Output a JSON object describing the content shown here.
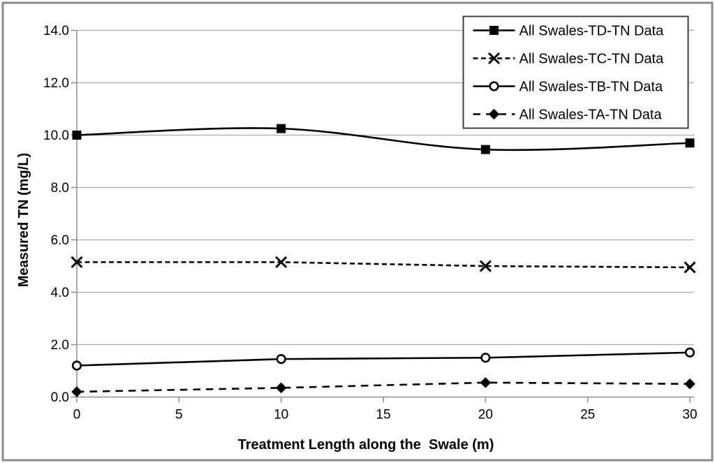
{
  "figure": {
    "background": "#ffffff",
    "border_color": "#8c8c8c"
  },
  "chart_data": {
    "type": "line",
    "xlabel": "Treatment Length along the  Swale (m)",
    "ylabel": "Measured TN (mg/L)",
    "xlim": [
      0,
      30
    ],
    "ylim": [
      0,
      14
    ],
    "xticks": [
      0,
      5,
      10,
      15,
      20,
      25,
      30
    ],
    "yticks": [
      "0.0",
      "2.0",
      "4.0",
      "6.0",
      "8.0",
      "10.0",
      "12.0",
      "14.0"
    ],
    "grid": "horizontal-gridlines-on",
    "legend_position": "top-right",
    "x": [
      0,
      10,
      20,
      30
    ],
    "series": [
      {
        "key": "TD",
        "name": "All Swales-TD-TN Data",
        "values": [
          10.0,
          10.25,
          9.45,
          9.7
        ],
        "line": "solid",
        "marker": "filled-square",
        "smooth": true
      },
      {
        "key": "TC",
        "name": "All Swales-TC-TN Data",
        "values": [
          5.15,
          5.15,
          5.0,
          4.95
        ],
        "line": "dashed",
        "marker": "x-cross",
        "smooth": false
      },
      {
        "key": "TB",
        "name": "All Swales-TB-TN Data",
        "values": [
          1.2,
          1.45,
          1.5,
          1.7
        ],
        "line": "solid",
        "marker": "open-circle",
        "smooth": false
      },
      {
        "key": "TA",
        "name": "All Swales-TA-TN Data",
        "values": [
          0.2,
          0.35,
          0.55,
          0.5
        ],
        "line": "dashed",
        "marker": "filled-diamond",
        "smooth": false
      }
    ],
    "colors": {
      "series": "#000000",
      "gridline": "#a8a8a8",
      "axis": "#8c8c8c",
      "tick_label": "#000000",
      "plot_background": "#ffffff",
      "legend_border": "#3f3f3f",
      "legend_background": "#ffffff"
    }
  }
}
